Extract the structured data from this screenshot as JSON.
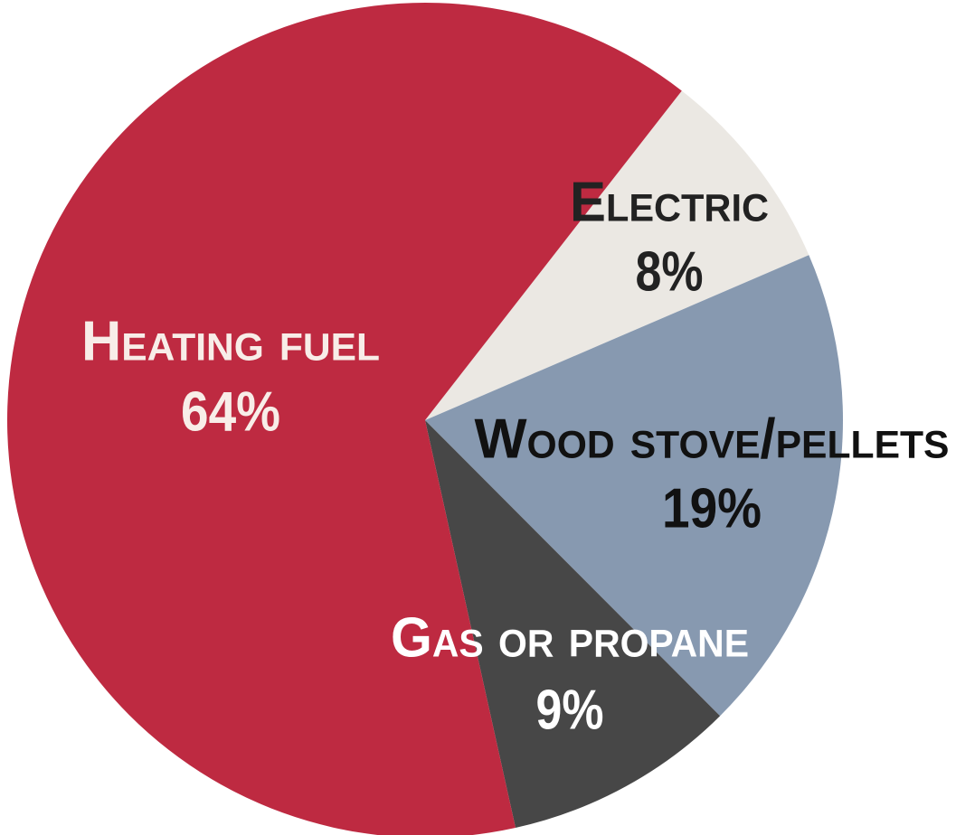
{
  "chart_data": {
    "type": "pie",
    "categories": [
      "Electric",
      "Wood stove/pellets",
      "Gas or propane",
      "Heating fuel"
    ],
    "values": [
      8,
      19,
      9,
      64
    ],
    "value_labels": [
      "8%",
      "19%",
      "9%",
      "64%"
    ],
    "colors": [
      "#ebe8e3",
      "#8799b0",
      "#474747",
      "#be2a41"
    ],
    "label_colors": [
      "#222222",
      "#111111",
      "#ffffff",
      "#f8ede8"
    ]
  }
}
